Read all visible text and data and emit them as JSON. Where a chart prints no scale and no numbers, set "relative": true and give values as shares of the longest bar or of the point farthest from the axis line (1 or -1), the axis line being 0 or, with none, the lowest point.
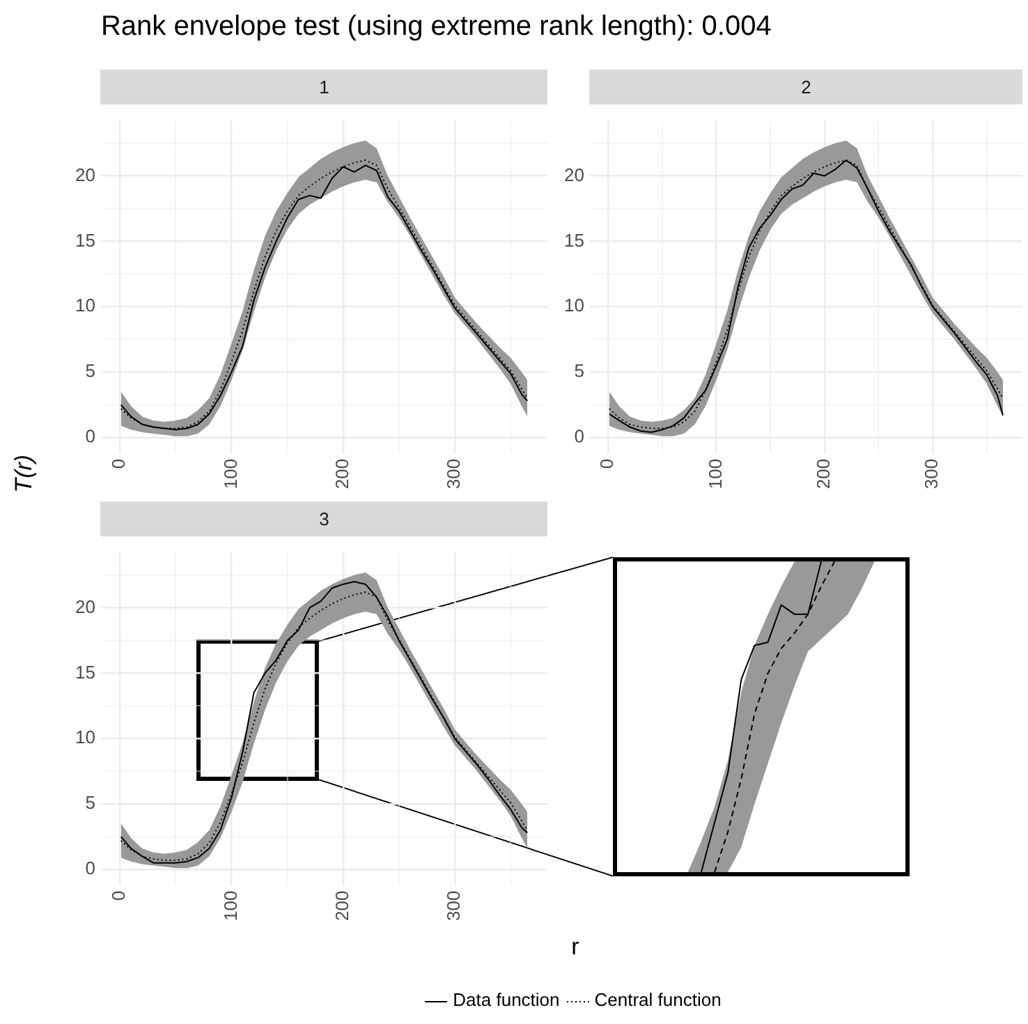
{
  "chart_data": [
    {
      "type": "line",
      "title": "Rank envelope test (using extreme rank length): 0.004",
      "subtitle": "1",
      "ylabel": "T(r)",
      "legend": "bottom",
      "grid": true,
      "marker": "none",
      "xlim": [
        -17,
        383
      ],
      "ylim": [
        -1.2,
        24.2
      ],
      "xticks": [
        0,
        {
          "value": 50,
          "label": null
        },
        100,
        {
          "value": 150,
          "label": null
        },
        200,
        {
          "value": 250,
          "label": null
        },
        300,
        {
          "value": 350,
          "label": null
        }
      ],
      "yticks": [
        0,
        {
          "value": 2.5,
          "label": null
        },
        5,
        {
          "value": 7.5,
          "label": null
        },
        10,
        {
          "value": 12.5,
          "label": null
        },
        15,
        {
          "value": 17.5,
          "label": null
        },
        20,
        {
          "value": 22.5,
          "label": null
        }
      ],
      "series": [
        {
          "name": "Data function",
          "color": "#000000",
          "line_style": "solid",
          "x": [
            1,
            10,
            20,
            30,
            40,
            50,
            60,
            70,
            80,
            90,
            100,
            110,
            120,
            130,
            140,
            150,
            160,
            170,
            180,
            190,
            200,
            210,
            220,
            230,
            240,
            250,
            260,
            270,
            280,
            290,
            300,
            310,
            320,
            330,
            340,
            350,
            360,
            365
          ],
          "values": [
            2.5,
            1.6,
            1.0,
            0.8,
            0.7,
            0.6,
            0.7,
            1.0,
            1.8,
            3.2,
            5.0,
            7.0,
            10.5,
            13.0,
            15.0,
            16.8,
            18.2,
            18.5,
            18.3,
            19.8,
            20.7,
            20.3,
            20.8,
            20.4,
            18.4,
            17.3,
            15.8,
            14.3,
            12.9,
            11.4,
            9.9,
            8.9,
            7.9,
            6.9,
            5.9,
            4.9,
            3.3,
            2.8
          ]
        },
        {
          "name": "Central function",
          "color": "#000000",
          "line_style": "dotted",
          "x": [
            1,
            10,
            20,
            30,
            40,
            50,
            60,
            70,
            80,
            90,
            100,
            110,
            120,
            130,
            140,
            150,
            160,
            170,
            180,
            190,
            200,
            210,
            220,
            230,
            240,
            250,
            260,
            270,
            280,
            290,
            300,
            310,
            320,
            330,
            340,
            350,
            360,
            365
          ],
          "values": [
            2.2,
            1.5,
            1.0,
            0.8,
            0.7,
            0.7,
            0.8,
            1.2,
            2.0,
            3.6,
            5.8,
            8.2,
            11.2,
            13.8,
            15.8,
            17.3,
            18.5,
            19.2,
            19.8,
            20.3,
            20.7,
            21.0,
            21.2,
            20.8,
            19.0,
            17.6,
            16.1,
            14.6,
            13.1,
            11.6,
            10.1,
            9.1,
            8.1,
            7.1,
            6.1,
            5.1,
            3.7,
            3.0
          ],
          "lower": [
            0.9,
            0.6,
            0.4,
            0.3,
            0.2,
            0.1,
            0.1,
            0.3,
            1.0,
            2.4,
            4.4,
            6.7,
            9.6,
            12.2,
            14.3,
            15.9,
            17.1,
            17.8,
            18.3,
            18.8,
            19.2,
            19.5,
            19.7,
            19.5,
            18.0,
            16.8,
            15.4,
            13.9,
            12.4,
            10.9,
            9.5,
            8.5,
            7.5,
            6.4,
            5.3,
            4.1,
            2.4,
            1.6
          ],
          "upper": [
            3.5,
            2.4,
            1.6,
            1.3,
            1.2,
            1.3,
            1.5,
            2.1,
            3.0,
            4.8,
            7.2,
            9.7,
            12.8,
            15.4,
            17.3,
            18.7,
            19.9,
            20.6,
            21.3,
            21.8,
            22.2,
            22.5,
            22.7,
            22.1,
            20.0,
            18.4,
            16.8,
            15.3,
            13.8,
            12.3,
            10.7,
            9.7,
            8.7,
            7.8,
            6.9,
            6.1,
            5.0,
            4.4
          ]
        }
      ]
    },
    {
      "type": "line",
      "subtitle": "2",
      "grid": true,
      "marker": "none",
      "xlim": [
        -17,
        383
      ],
      "ylim": [
        -1.2,
        24.2
      ],
      "xticks": [
        0,
        {
          "value": 50,
          "label": null
        },
        100,
        {
          "value": 150,
          "label": null
        },
        200,
        {
          "value": 250,
          "label": null
        },
        300,
        {
          "value": 350,
          "label": null
        }
      ],
      "yticks": [
        0,
        {
          "value": 2.5,
          "label": null
        },
        5,
        {
          "value": 7.5,
          "label": null
        },
        10,
        {
          "value": 12.5,
          "label": null
        },
        15,
        {
          "value": 17.5,
          "label": null
        },
        20,
        {
          "value": 22.5,
          "label": null
        }
      ],
      "series": [
        {
          "color": "#000000",
          "line_style": "solid",
          "x": [
            1,
            10,
            20,
            30,
            40,
            50,
            60,
            70,
            80,
            90,
            100,
            110,
            120,
            130,
            140,
            150,
            160,
            170,
            180,
            190,
            200,
            210,
            220,
            230,
            240,
            250,
            260,
            270,
            280,
            290,
            300,
            310,
            320,
            330,
            340,
            350,
            360,
            365
          ],
          "values": [
            1.8,
            1.3,
            0.8,
            0.5,
            0.4,
            0.6,
            0.9,
            1.5,
            2.6,
            3.6,
            5.5,
            7.5,
            11.5,
            14.5,
            16.0,
            17.0,
            18.2,
            19.0,
            19.3,
            20.2,
            20.0,
            20.5,
            21.2,
            20.6,
            19.0,
            17.3,
            15.8,
            14.5,
            13.2,
            11.5,
            10.0,
            9.0,
            8.0,
            6.9,
            5.8,
            4.8,
            3.2,
            1.7
          ]
        },
        {
          "color": "#000000",
          "line_style": "dotted",
          "x": [
            1,
            10,
            20,
            30,
            40,
            50,
            60,
            70,
            80,
            90,
            100,
            110,
            120,
            130,
            140,
            150,
            160,
            170,
            180,
            190,
            200,
            210,
            220,
            230,
            240,
            250,
            260,
            270,
            280,
            290,
            300,
            310,
            320,
            330,
            340,
            350,
            360,
            365
          ],
          "values": [
            2.2,
            1.5,
            1.0,
            0.8,
            0.7,
            0.7,
            0.8,
            1.2,
            2.0,
            3.6,
            5.8,
            8.2,
            11.2,
            13.8,
            15.8,
            17.3,
            18.5,
            19.2,
            19.8,
            20.3,
            20.7,
            21.0,
            21.2,
            20.8,
            19.0,
            17.6,
            16.1,
            14.6,
            13.1,
            11.6,
            10.1,
            9.1,
            8.1,
            7.1,
            6.1,
            5.1,
            3.7,
            3.0
          ],
          "lower": [
            0.9,
            0.6,
            0.4,
            0.3,
            0.2,
            0.1,
            0.1,
            0.3,
            1.0,
            2.4,
            4.4,
            6.7,
            9.6,
            12.2,
            14.3,
            15.9,
            17.1,
            17.8,
            18.3,
            18.8,
            19.2,
            19.5,
            19.7,
            19.5,
            18.0,
            16.8,
            15.4,
            13.9,
            12.4,
            10.9,
            9.5,
            8.5,
            7.5,
            6.4,
            5.3,
            4.1,
            2.4,
            1.6
          ],
          "upper": [
            3.5,
            2.4,
            1.6,
            1.3,
            1.2,
            1.3,
            1.5,
            2.1,
            3.0,
            4.8,
            7.2,
            9.7,
            12.8,
            15.4,
            17.3,
            18.7,
            19.9,
            20.6,
            21.3,
            21.8,
            22.2,
            22.5,
            22.7,
            22.1,
            20.0,
            18.4,
            16.8,
            15.3,
            13.8,
            12.3,
            10.7,
            9.7,
            8.7,
            7.8,
            6.9,
            6.1,
            5.0,
            4.4
          ]
        }
      ]
    },
    {
      "type": "line",
      "subtitle": "3",
      "xlabel": "r",
      "grid": true,
      "marker": "none",
      "xlim": [
        -17,
        383
      ],
      "ylim": [
        -1.2,
        24.2
      ],
      "xticks": [
        0,
        {
          "value": 50,
          "label": null
        },
        100,
        {
          "value": 150,
          "label": null
        },
        200,
        {
          "value": 250,
          "label": null
        },
        300,
        {
          "value": 350,
          "label": null
        }
      ],
      "yticks": [
        0,
        {
          "value": 2.5,
          "label": null
        },
        5,
        {
          "value": 7.5,
          "label": null
        },
        10,
        {
          "value": 12.5,
          "label": null
        },
        15,
        {
          "value": 17.5,
          "label": null
        },
        20,
        {
          "value": 22.5,
          "label": null
        }
      ],
      "series": [
        {
          "color": "#000000",
          "line_style": "solid",
          "x": [
            1,
            10,
            20,
            30,
            40,
            50,
            60,
            70,
            80,
            90,
            100,
            110,
            120,
            130,
            140,
            150,
            160,
            170,
            180,
            190,
            200,
            210,
            220,
            230,
            240,
            250,
            260,
            270,
            280,
            290,
            300,
            310,
            320,
            330,
            340,
            350,
            360,
            365
          ],
          "values": [
            2.5,
            1.6,
            1.0,
            0.5,
            0.5,
            0.5,
            0.6,
            0.9,
            1.6,
            3.0,
            5.5,
            9.0,
            13.5,
            15.0,
            16.0,
            17.5,
            18.3,
            20.0,
            20.5,
            21.5,
            21.8,
            22.0,
            21.8,
            20.8,
            19.3,
            17.5,
            16.0,
            14.5,
            13.0,
            11.6,
            10.0,
            9.0,
            8.0,
            6.9,
            5.7,
            4.6,
            3.2,
            2.8
          ]
        },
        {
          "color": "#000000",
          "line_style": "dotted",
          "x": [
            1,
            10,
            20,
            30,
            40,
            50,
            60,
            70,
            80,
            90,
            100,
            110,
            120,
            130,
            140,
            150,
            160,
            170,
            180,
            190,
            200,
            210,
            220,
            230,
            240,
            250,
            260,
            270,
            280,
            290,
            300,
            310,
            320,
            330,
            340,
            350,
            360,
            365
          ],
          "values": [
            2.2,
            1.5,
            1.0,
            0.8,
            0.7,
            0.7,
            0.8,
            1.2,
            2.0,
            3.6,
            5.8,
            8.2,
            11.2,
            13.8,
            15.8,
            17.3,
            18.5,
            19.2,
            19.8,
            20.3,
            20.7,
            21.0,
            21.2,
            20.8,
            19.0,
            17.6,
            16.1,
            14.6,
            13.1,
            11.6,
            10.1,
            9.1,
            8.1,
            7.1,
            6.1,
            5.1,
            3.7,
            3.0
          ],
          "lower": [
            0.9,
            0.6,
            0.4,
            0.3,
            0.2,
            0.1,
            0.1,
            0.3,
            1.0,
            2.4,
            4.4,
            6.7,
            9.6,
            12.2,
            14.3,
            15.9,
            17.1,
            17.8,
            18.3,
            18.8,
            19.2,
            19.5,
            19.7,
            19.5,
            18.0,
            16.8,
            15.4,
            13.9,
            12.4,
            10.9,
            9.5,
            8.5,
            7.5,
            6.4,
            5.3,
            4.1,
            2.4,
            1.6
          ],
          "upper": [
            3.5,
            2.4,
            1.6,
            1.3,
            1.2,
            1.3,
            1.5,
            2.1,
            3.0,
            4.8,
            7.2,
            9.7,
            12.8,
            15.4,
            17.3,
            18.7,
            19.9,
            20.6,
            21.3,
            21.8,
            22.2,
            22.5,
            22.7,
            22.1,
            20.0,
            18.4,
            16.8,
            15.3,
            13.8,
            12.3,
            10.7,
            9.7,
            8.7,
            7.8,
            6.9,
            6.1,
            5.0,
            4.4
          ]
        }
      ]
    },
    {
      "type": "line",
      "relative": true,
      "marker": "none",
      "categories": [
        null,
        null,
        null,
        null,
        null,
        null,
        null,
        null,
        null,
        null,
        null,
        null,
        null,
        null,
        null,
        null,
        null,
        null,
        null,
        null,
        null,
        null
      ],
      "series": [
        {
          "color": "#000000",
          "line_style": "solid",
          "values": [
            null,
            null,
            null,
            null,
            null,
            null,
            0,
            0.16,
            0.32,
            0.62,
            0.73,
            0.74,
            0.86,
            0.83,
            0.83,
            1,
            null,
            null,
            null,
            null,
            null,
            null
          ]
        },
        {
          "color": "#000000",
          "line_style": "dashed",
          "values": [
            null,
            null,
            null,
            null,
            null,
            null,
            null,
            0,
            0.13,
            0.3,
            0.51,
            0.64,
            0.72,
            0.77,
            0.83,
            0.92,
            1,
            null,
            null,
            null,
            null,
            null
          ],
          "lower": [
            null,
            null,
            null,
            null,
            null,
            0,
            0,
            0,
            0,
            0.08,
            0.22,
            0.35,
            0.48,
            0.6,
            0.71,
            0.75,
            0.79,
            0.83,
            0.91,
            1,
            null,
            null
          ],
          "upper": [
            null,
            null,
            null,
            null,
            null,
            0,
            0.1,
            0.21,
            0.36,
            0.58,
            0.73,
            0.83,
            0.92,
            1,
            1,
            1,
            1,
            1,
            1,
            1,
            null,
            null
          ]
        }
      ]
    }
  ]
}
